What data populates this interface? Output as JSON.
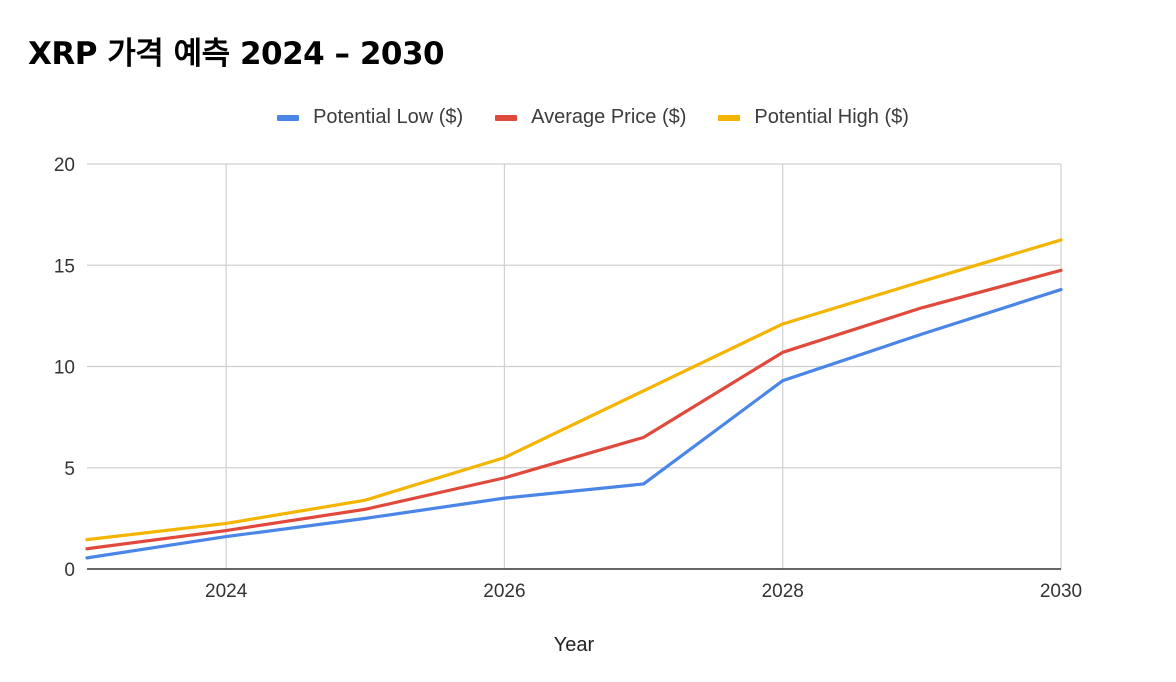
{
  "title": "XRP 가격 예측 2024 – 2030",
  "chart_data": {
    "type": "line",
    "xlabel": "Year",
    "ylabel": "",
    "xlim": [
      2023,
      2030
    ],
    "ylim": [
      0,
      20
    ],
    "xticks": [
      "2024",
      "2026",
      "2028",
      "2030"
    ],
    "yticks": [
      "0",
      "5",
      "10",
      "15",
      "20"
    ],
    "grid": true,
    "legend_position": "top",
    "x": [
      2023,
      2024,
      2025,
      2026,
      2027,
      2028,
      2029,
      2030
    ],
    "series": [
      {
        "name": "Potential Low ($)",
        "color": "#4a86e8",
        "values": [
          0.55,
          1.6,
          2.5,
          3.5,
          4.2,
          9.3,
          11.6,
          13.8
        ]
      },
      {
        "name": "Average Price ($)",
        "color": "#e04a3c",
        "values": [
          1.0,
          1.9,
          2.95,
          4.5,
          6.5,
          10.7,
          12.9,
          14.75
        ]
      },
      {
        "name": "Potential High ($)",
        "color": "#f4b400",
        "values": [
          1.45,
          2.25,
          3.4,
          5.5,
          8.8,
          12.1,
          14.2,
          16.25
        ]
      }
    ]
  }
}
